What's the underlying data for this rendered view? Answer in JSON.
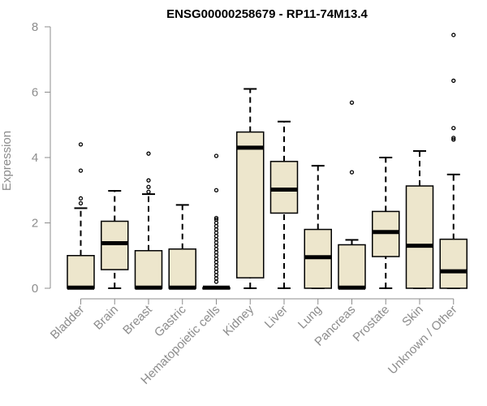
{
  "chart_data": {
    "type": "boxplot",
    "title": "ENSG00000258679 - RP11-74M13.4",
    "xlabel": "",
    "ylabel": "Expression",
    "ylim": [
      0,
      8
    ],
    "yticks": [
      "0",
      "2",
      "4",
      "6",
      "8"
    ],
    "grid": false,
    "box_fill": "#ede6cc",
    "categories": [
      "Bladder",
      "Brain",
      "Breast",
      "Gastric",
      "Hematopoietic cells",
      "Kidney",
      "Liver",
      "Lung",
      "Pancreas",
      "Prostate",
      "Skin",
      "Unknown / Other"
    ],
    "boxes": [
      {
        "category": "Bladder",
        "whisker_low": 0,
        "q1": 0,
        "median": 0.02,
        "q3": 1.0,
        "whisker_high": 2.45,
        "outliers": [
          2.6,
          2.75,
          3.6,
          4.4
        ]
      },
      {
        "category": "Brain",
        "whisker_low": 0,
        "q1": 0.57,
        "median": 1.38,
        "q3": 2.05,
        "whisker_high": 2.98,
        "outliers": []
      },
      {
        "category": "Breast",
        "whisker_low": 0,
        "q1": 0,
        "median": 0.02,
        "q3": 1.15,
        "whisker_high": 2.88,
        "outliers": [
          2.95,
          3.1,
          3.3,
          4.12
        ]
      },
      {
        "category": "Gastric",
        "whisker_low": 0,
        "q1": 0,
        "median": 0.02,
        "q3": 1.2,
        "whisker_high": 2.55,
        "outliers": []
      },
      {
        "category": "Hematopoietic cells",
        "whisker_low": 0,
        "q1": 0,
        "median": 0.02,
        "q3": 0.02,
        "whisker_high": 0.05,
        "outliers": [
          0.2,
          0.3,
          0.4,
          0.5,
          0.6,
          0.7,
          0.8,
          0.9,
          1.0,
          1.1,
          1.2,
          1.3,
          1.4,
          1.5,
          1.6,
          1.7,
          1.8,
          1.9,
          2.0,
          2.1,
          2.15,
          3.0,
          4.05
        ]
      },
      {
        "category": "Kidney",
        "whisker_low": 0,
        "q1": 0.32,
        "median": 4.3,
        "q3": 4.78,
        "whisker_high": 6.1,
        "outliers": []
      },
      {
        "category": "Liver",
        "whisker_low": 0,
        "q1": 2.3,
        "median": 3.02,
        "q3": 3.88,
        "whisker_high": 5.1,
        "outliers": []
      },
      {
        "category": "Lung",
        "whisker_low": 0,
        "q1": 0,
        "median": 0.95,
        "q3": 1.8,
        "whisker_high": 3.75,
        "outliers": []
      },
      {
        "category": "Pancreas",
        "whisker_low": 0,
        "q1": 0,
        "median": 0.02,
        "q3": 1.33,
        "whisker_high": 1.48,
        "outliers": [
          3.55,
          5.68
        ]
      },
      {
        "category": "Prostate",
        "whisker_low": 0,
        "q1": 0.97,
        "median": 1.72,
        "q3": 2.35,
        "whisker_high": 4.0,
        "outliers": []
      },
      {
        "category": "Skin",
        "whisker_low": 0,
        "q1": 0,
        "median": 1.3,
        "q3": 3.13,
        "whisker_high": 4.2,
        "outliers": []
      },
      {
        "category": "Unknown / Other",
        "whisker_low": 0,
        "q1": 0,
        "median": 0.52,
        "q3": 1.5,
        "whisker_high": 3.48,
        "outliers": [
          4.55,
          4.6,
          4.9,
          6.35,
          7.75
        ]
      }
    ]
  }
}
